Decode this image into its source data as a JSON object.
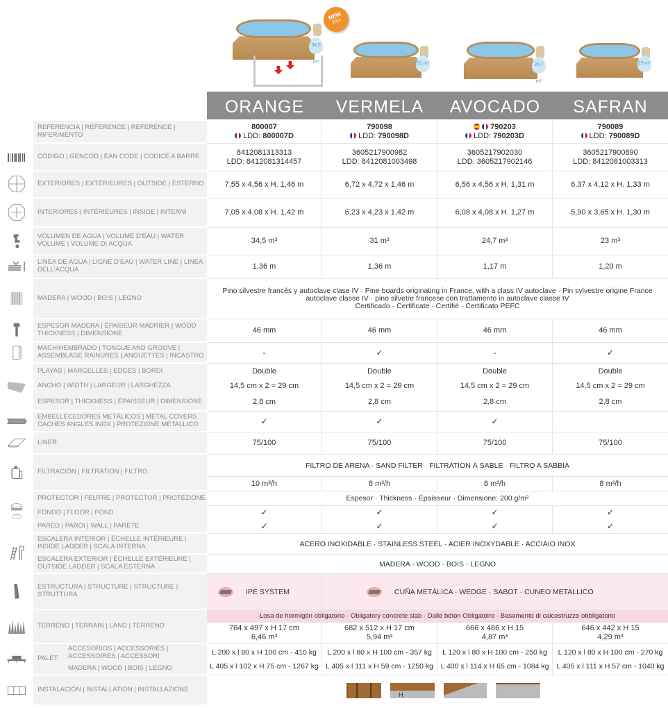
{
  "badge": {
    "label": "NEW",
    "year": "2021"
  },
  "models": [
    {
      "name": "ORANGE",
      "ref": "800007",
      "ldd_label": "LDD:",
      "ldd": "800007D",
      "ean": "8412081313313",
      "ean_ldd": "LDD:  8412081314457",
      "exterior": "7,55 x 4,56 x H. 1,46 m",
      "interior": "7,05 x 4,08 x H. 1,42 m",
      "volume": "34,5 m³",
      "waterline": "1,36 m",
      "thickness": "46 mm",
      "tongue": "-",
      "edges": "Double",
      "edge_width": "14,5 cm x 2 = 29 cm",
      "edge_thickness": "2,8 cm",
      "metal_covers": "✓",
      "liner": "75/100",
      "filter_flow": "10 m³/h",
      "floor": "✓",
      "wall": "✓",
      "terrain_dims": "764 x 497 x H 17 cm",
      "terrain_volume": "6,46 m³",
      "palet_acc": "L 200 x l 80 x H 100 cm - 410 kg",
      "palet_wood": "L 405 x l 102 x H 75 cm - 1267 kg",
      "pool_volume_tag": "34,5 m³",
      "flags": [
        "fr"
      ]
    },
    {
      "name": "VERMELA",
      "ref": "790098",
      "ldd_label": "LDD:",
      "ldd": "790098D",
      "ean": "3605217900982",
      "ean_ldd": "LDD:  8412081003498",
      "exterior": "6,72 x 4,72 x 1,46 m",
      "interior": "6,23 x 4,23 x 1,42 m",
      "volume": "31 m³",
      "waterline": "1,36 m",
      "thickness": "46 mm",
      "tongue": "✓",
      "edges": "Double",
      "edge_width": "14,5 cm x 2 = 29 cm",
      "edge_thickness": "2,8 cm",
      "metal_covers": "✓",
      "liner": "75/100",
      "filter_flow": "8 m³/h",
      "floor": "✓",
      "wall": "✓",
      "terrain_dims": "682 x 512 x H 17 cm",
      "terrain_volume": "5,94 m³",
      "palet_acc": "L 200 x l 80 x H 100 cm - 357 kg",
      "palet_wood": "L 405 x l 111 x H 59 cm - 1250 kg",
      "pool_volume_tag": "31 m³",
      "flags": [
        "fr"
      ]
    },
    {
      "name": "AVOCADO",
      "ref": "790203",
      "ldd_label": "LDD:",
      "ldd": "790203D",
      "ean": "3605217902030",
      "ean_ldd": "LDD: 3605217902146",
      "exterior": "6,56 x 4,56 x H. 1,31 m",
      "interior": "6,08 x 4,08 x H. 1,27 m",
      "volume": "24,7 m³",
      "waterline": "1,17 m",
      "thickness": "46 mm",
      "tongue": "-",
      "edges": "Double",
      "edge_width": "14,5 cm x 2 = 29 cm",
      "edge_thickness": "2,8 cm",
      "metal_covers": "✓",
      "liner": "75/100",
      "filter_flow": "8 m³/h",
      "floor": "✓",
      "wall": "✓",
      "terrain_dims": "666 x 486 x H 15",
      "terrain_volume": "4,87 m³",
      "palet_acc": "L 120 x l 80 x H 100 cm - 250 kg",
      "palet_wood": "L 400 x l 114 x H 65 cm - 1084 kg",
      "pool_volume_tag": "24,7 m³",
      "flags": [
        "es",
        "fr"
      ]
    },
    {
      "name": "SAFRAN",
      "ref": "790089",
      "ldd_label": "LDD:",
      "ldd": "790089D",
      "ean": "3605217900890",
      "ean_ldd": "LDD: 8412081003313",
      "exterior": "6,37 x 4,12 x H. 1,33 m",
      "interior": "5,90 x 3,65 x H. 1,30 m",
      "volume": "23 m³",
      "waterline": "1,20 m",
      "thickness": "46 mm",
      "tongue": "✓",
      "edges": "Double",
      "edge_width": "14,5 cm x 2 = 29 cm",
      "edge_thickness": "2,8 cm",
      "metal_covers": "",
      "liner": "75/100",
      "filter_flow": "8 m³/h",
      "floor": "✓",
      "wall": "✓",
      "terrain_dims": "646 x 442 x H 15",
      "terrain_volume": "4,29 m³",
      "palet_acc": "L 120 x l 80 x H 100 cm - 270 kg",
      "palet_wood": "L 405 x l 111 x H 57 cm - 1040 kg",
      "pool_volume_tag": "23 m³",
      "flags": [
        "fr"
      ]
    }
  ],
  "labels": {
    "ref": "REFERENCIA | RÉFERENCE | REFERENCE | RIFERIMENTO",
    "ean": "CÓDIGO | GENCOD | EAN CODE | CODICE A BARRE",
    "exterior": "EXTERIORES | EXTÉRIEURES | OUTSIDE | ESTERNO",
    "interior": "INTERIORES | INTÉRIEURES | INSIDE | INTERNI",
    "volume": "VOLUMEN DE AGUA | VOLUME D'EAU | WATER VOLUME | VOLUME DI ACQUA",
    "waterline": "LINEA DE AGUA | LIGNE D'EAU | WATER LINE | LINEA DELL'ACQUA",
    "wood": "MADERA | WOOD | BOIS  | LEGNO",
    "thickness": "ESPESOR MADERA | ÉPAISEUR MADRIER | WOOD THICKNESS | DIMENSIONE",
    "tongue": "MACHIHEMBRADO | TONGUE AND GROOVE | ASSEMBLAGE RAINURES LANGUETTES | INCASTRO",
    "edges": "PLAYAS | MARGELLES | EDGES | BORDI",
    "edge_width": "ANCHO | WIDTH | LARGEUR | LARGHEZZA",
    "edge_thickness": "ESPESOR | THICKNESS | ÉPAISSEUR | DIMENSIONE",
    "metal_covers": "EMBELLECEDORES METÁLICOS | METAL COVERS CACHES ANGLES INOX | PROTEZIONE METALLICO",
    "liner": "LINER",
    "filtration": "FILTRACIÓN | FILTRATION | FILTRO",
    "protector": "PROTECTOR | FEUTRE | PROTECTOR | PROTEZIONE",
    "floor": "FONDO | FLOOR | FOND",
    "wall": "PARED | PAROI | WALL | PARETE",
    "inside_ladder": "ESCALERA INTERIOR | ÉCHELLE INTÉRIEURE | INSIDE LADDER | SCALA INTERNA",
    "outside_ladder": "ESCALERA EXTERIOR | ÉCHELLE EXTÉRIEURE | OUTSIDE LADDER | SCALA ESTERNA",
    "structure": "ESTRUCTURA | STRUCTURE | STRUCTURE | STRUTTURA",
    "terrain": "TERRENO | TERRAIN | LAND | TERRENO",
    "palet": "PALET",
    "palet_acc": "ACCESORIOS | ACCESSORIES | ACCESSOIRES | ACCESSORI",
    "palet_wood": "MADERA | WOOD | BOIS  | LEGNO",
    "installation": "INSTALACIÓN | INSTALLATION | INSTALLAZIONE"
  },
  "shared": {
    "wood": "Pino silvestre francés y autoclave clase IV · Pine boards originating in France, with a class IV autoclave · Pin sylvestre origine France autoclave classe IV  · pino silvetre francese con trattamento in autoclave classe IV",
    "wood_cert": "Certificado · Certificate · Certifié · Certificato PEFC",
    "filter": "FILTRO DE ARENA · SAND FILTER · FILTRATION À SABLE · FILTRO A SABBIA",
    "protector": "Espesor · Thickness · Épaisseur · Dimensione:  200 g/m²",
    "inside_ladder": "ACERO INOXIDABLE · STAINLESS STEEL · ACIER INOXYDABLE · ACCIAIO INOX",
    "outside_ladder": "MADERA · WOOD · BOIS · LEGNO",
    "structure_ipe": "IPE SYSTEM",
    "structure_wedge": "CUÑA METÁLICA · WEDGE · SABOT · CUNEO METALLICO",
    "terrain_note": "Losa de hormigón obligatorio · Obligatory concrete slab · Dalle béton Obligatoire · Basamento di calcestruzzo obbligatorio",
    "install_h": "H"
  },
  "colors": {
    "header_band": "#8c8c8c",
    "label_bg": "#f2f2f2",
    "structure_bg": "#fce9ef",
    "terrain_note_bg": "#f8d8e3",
    "badge": "#f0922b"
  }
}
